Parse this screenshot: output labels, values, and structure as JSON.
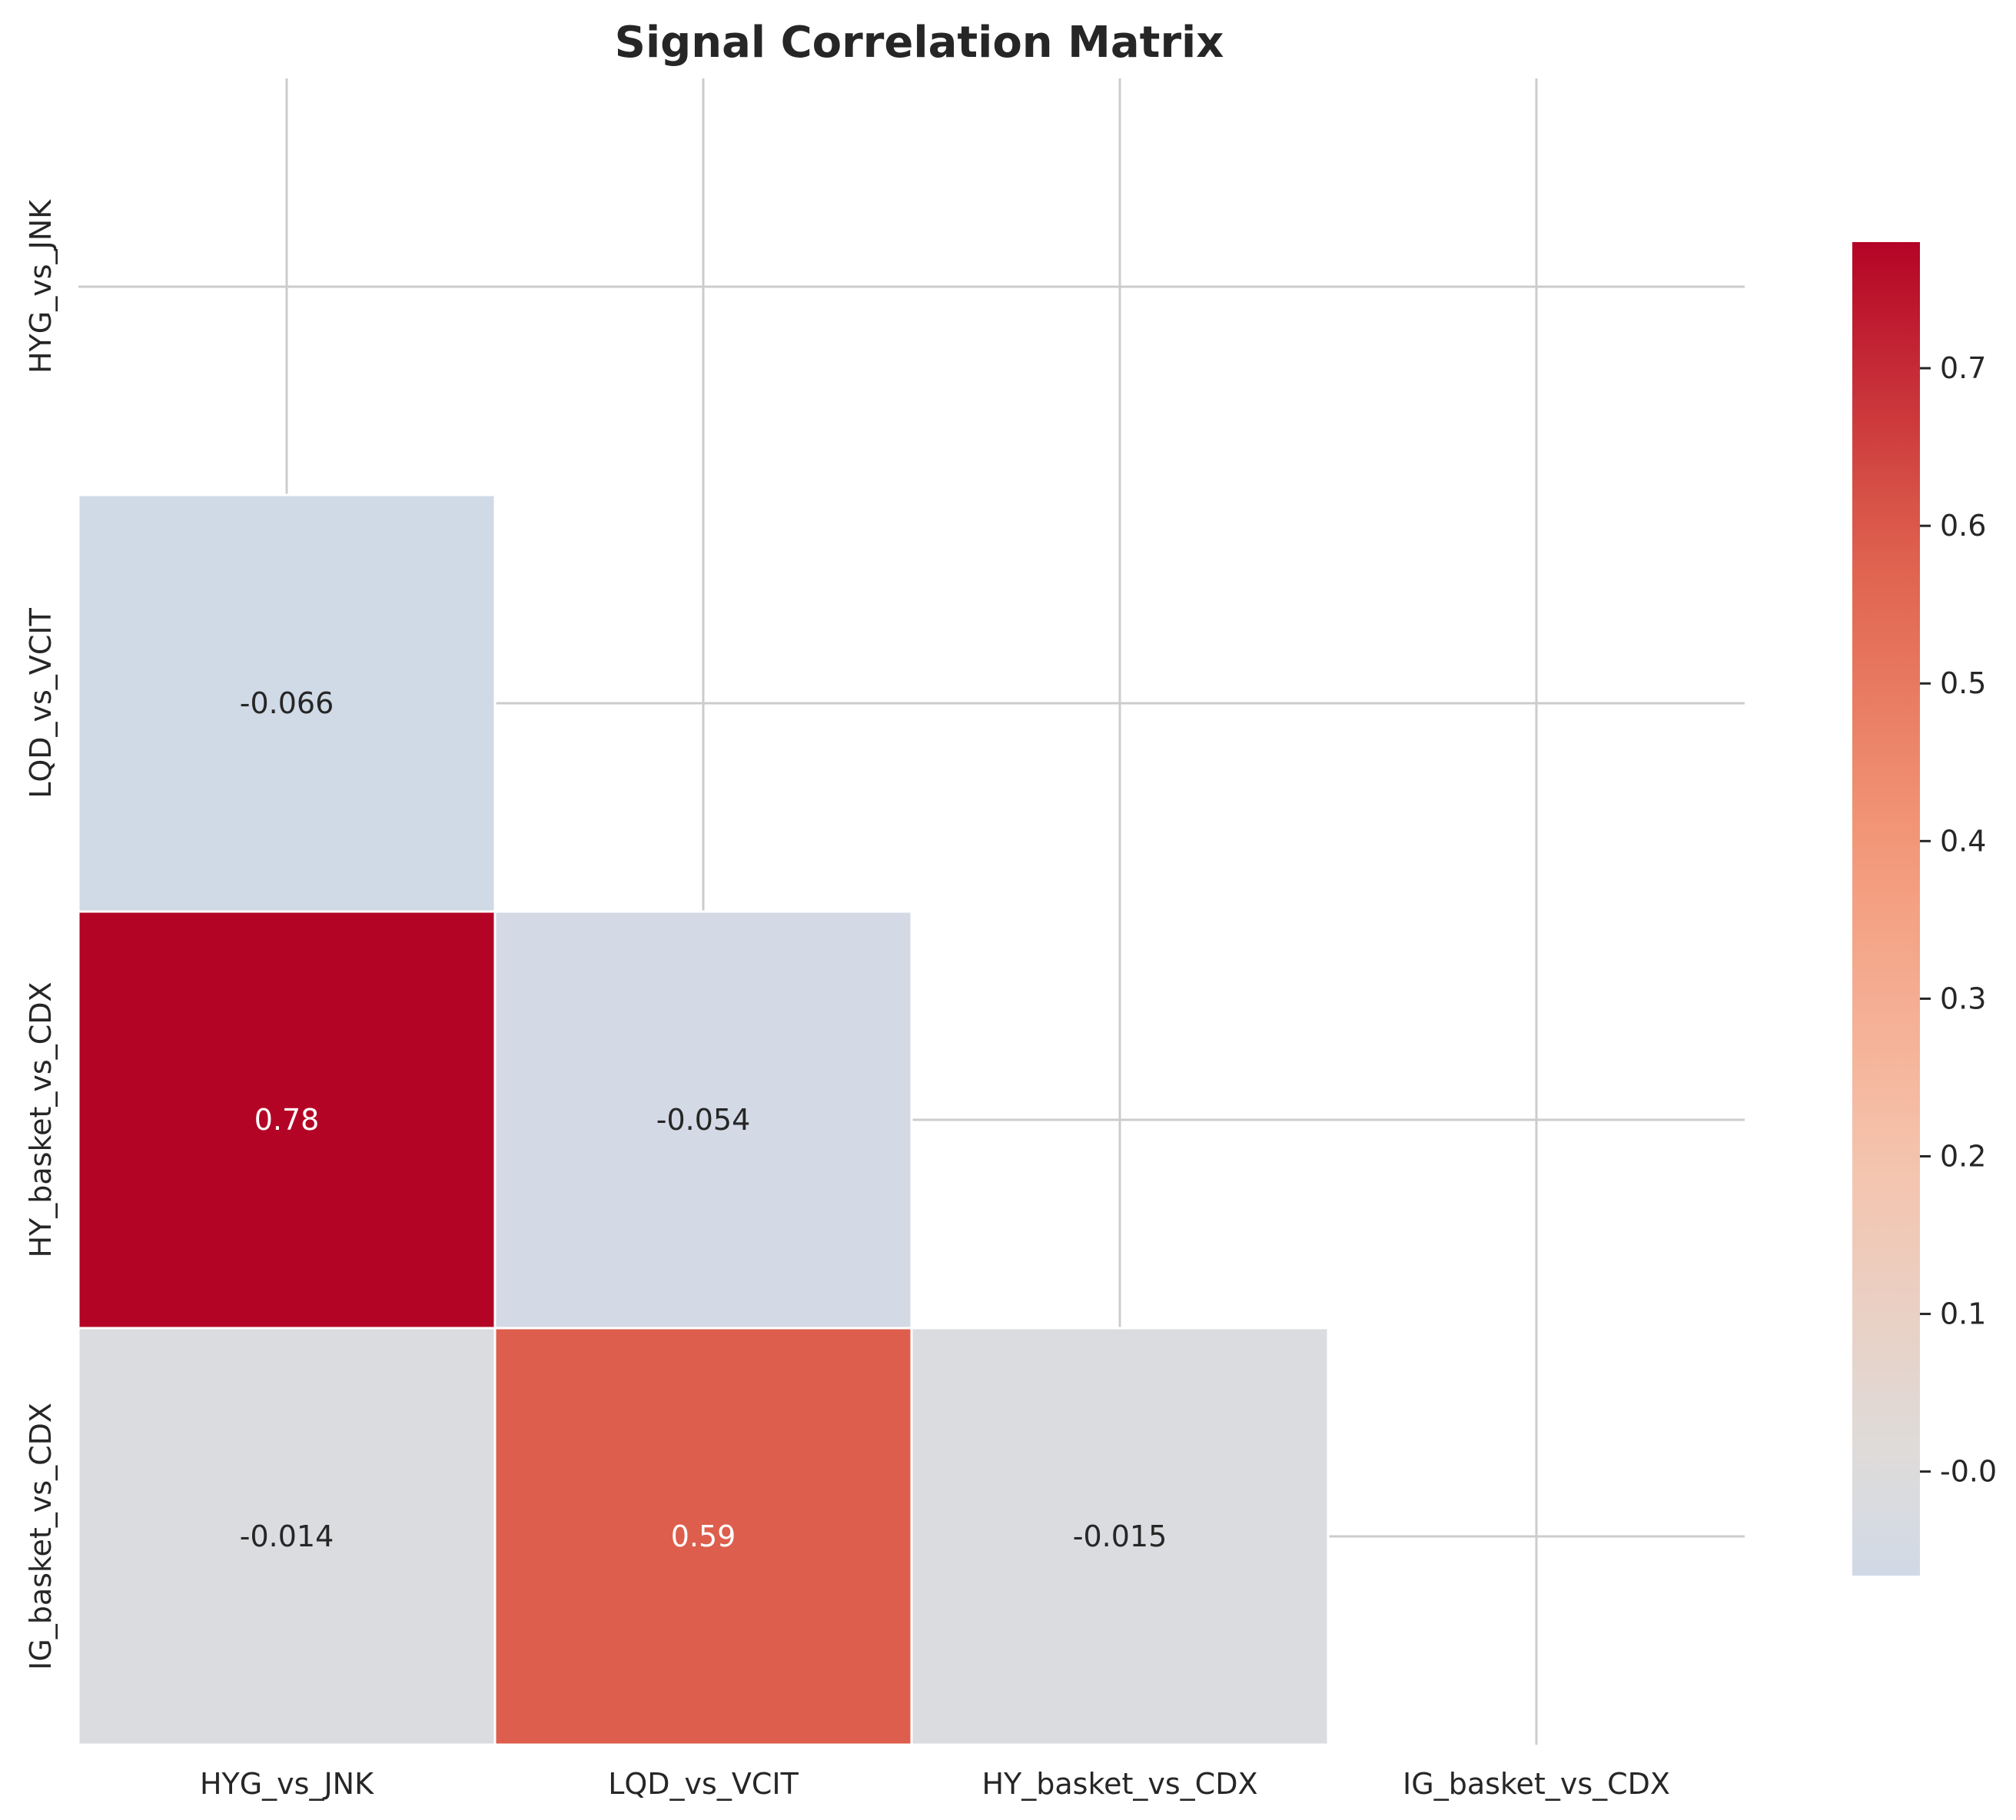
{
  "chart_data": {
    "type": "heatmap",
    "title": "Signal Correlation Matrix",
    "xlabel": "",
    "ylabel": "",
    "rows": [
      "HYG_vs_JNK",
      "LQD_vs_VCIT",
      "HY_basket_vs_CDX",
      "IG_basket_vs_CDX"
    ],
    "columns": [
      "HYG_vs_JNK",
      "LQD_vs_VCIT",
      "HY_basket_vs_CDX",
      "IG_basket_vs_CDX"
    ],
    "mask": "upper triangle including diagonal",
    "cells": [
      {
        "row": "LQD_vs_VCIT",
        "col": "HYG_vs_JNK",
        "value": -0.066,
        "label": "-0.066"
      },
      {
        "row": "HY_basket_vs_CDX",
        "col": "HYG_vs_JNK",
        "value": 0.78,
        "label": "0.78"
      },
      {
        "row": "HY_basket_vs_CDX",
        "col": "LQD_vs_VCIT",
        "value": -0.054,
        "label": "-0.054"
      },
      {
        "row": "IG_basket_vs_CDX",
        "col": "HYG_vs_JNK",
        "value": -0.014,
        "label": "-0.014"
      },
      {
        "row": "IG_basket_vs_CDX",
        "col": "LQD_vs_VCIT",
        "value": 0.59,
        "label": "0.59"
      },
      {
        "row": "IG_basket_vs_CDX",
        "col": "HY_basket_vs_CDX",
        "value": -0.015,
        "label": "-0.015"
      }
    ],
    "colormap": "coolwarm",
    "colorbar": {
      "range": [
        -0.066,
        0.78
      ],
      "ticks": [
        "-0.0",
        "0.1",
        "0.2",
        "0.3",
        "0.4",
        "0.5",
        "0.6",
        "0.7"
      ],
      "tick_values": [
        0.0,
        0.1,
        0.2,
        0.3,
        0.4,
        0.5,
        0.6,
        0.7
      ]
    },
    "grid": true,
    "legend": "colorbar right"
  },
  "colors": {
    "title": "#262626",
    "text_dark": "#262626",
    "text_light": "#ffffff",
    "grid": "#cccccc",
    "cell_border": "#ffffff"
  }
}
